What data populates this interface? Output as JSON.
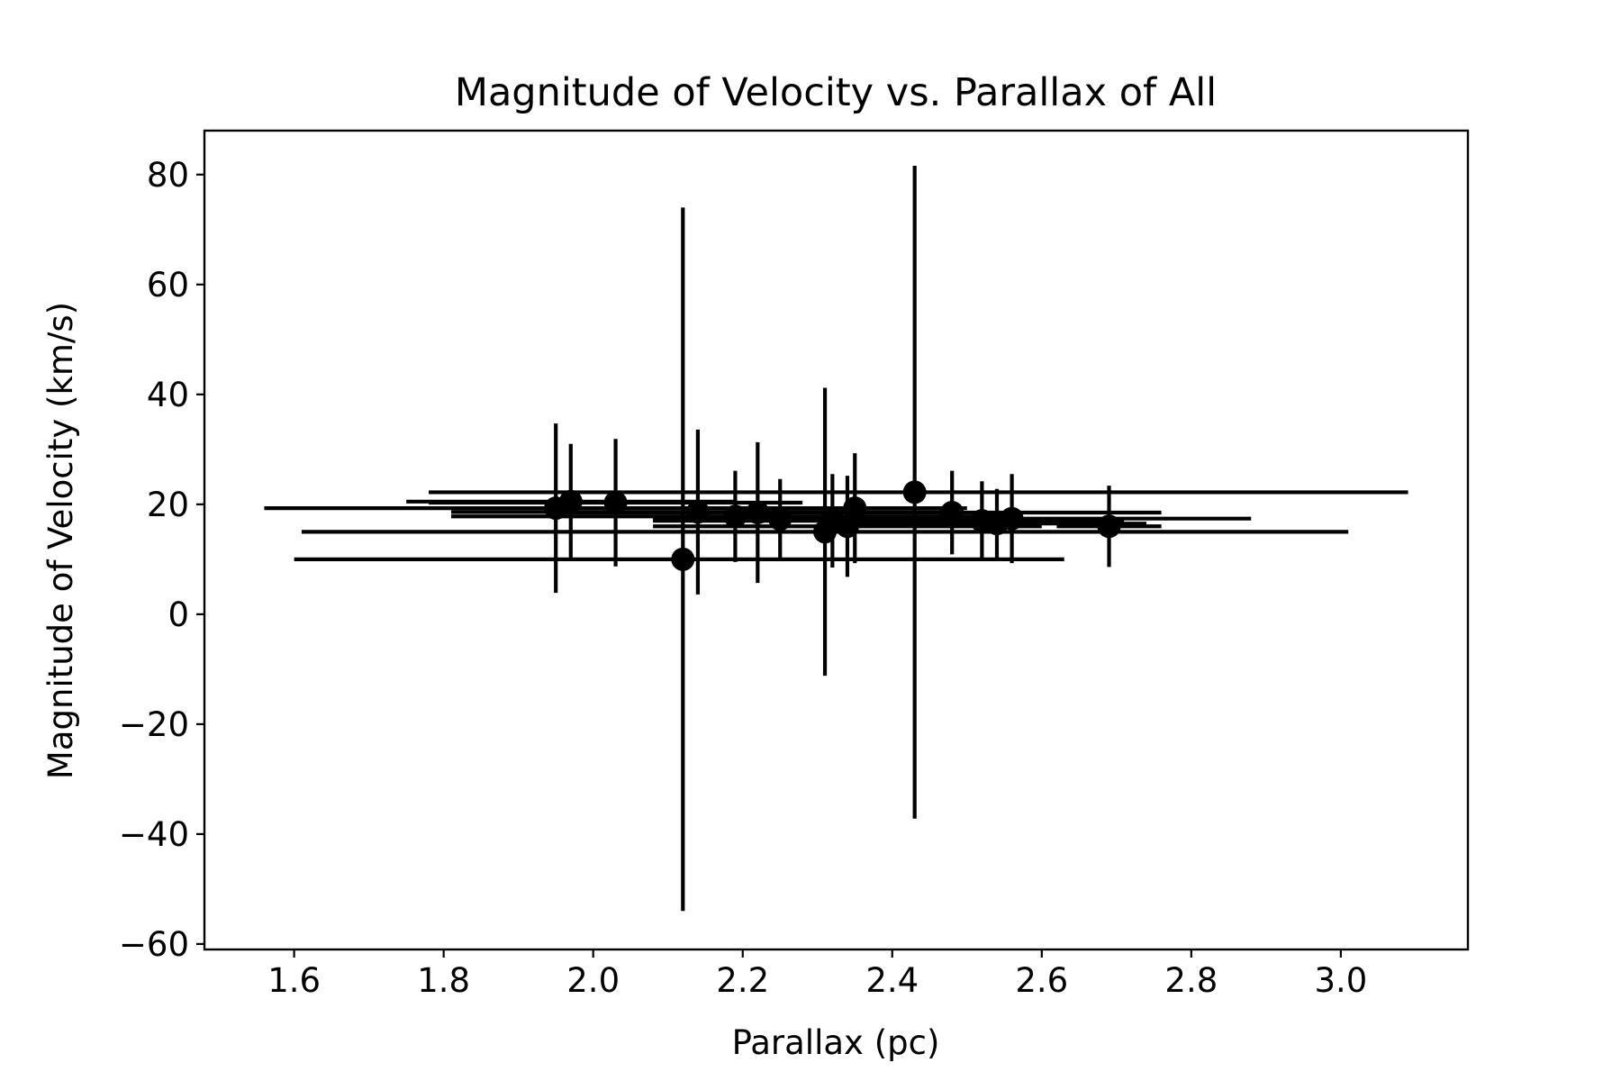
{
  "chart_data": {
    "type": "scatter",
    "title": "Magnitude of Velocity vs. Parallax of All",
    "xlabel": "Parallax (pc)",
    "ylabel": "Magnitude of Velocity (km/s)",
    "xlim": [
      1.48,
      3.17
    ],
    "ylim": [
      -61,
      88
    ],
    "xticks": [
      1.6,
      1.8,
      2.0,
      2.2,
      2.4,
      2.6,
      2.8,
      3.0
    ],
    "xtick_labels": [
      "1.6",
      "1.8",
      "2.0",
      "2.2",
      "2.4",
      "2.6",
      "2.8",
      "3.0"
    ],
    "yticks": [
      -60,
      -40,
      -20,
      0,
      20,
      40,
      60,
      80
    ],
    "ytick_labels": [
      "−60",
      "−40",
      "−20",
      "0",
      "20",
      "40",
      "60",
      "80"
    ],
    "grid": false,
    "marker_color": "#000000",
    "points": [
      {
        "x": 1.95,
        "y": 19.3,
        "xerr": [
          0.39,
          0.39
        ],
        "yerr": [
          15.4,
          15.4
        ]
      },
      {
        "x": 1.97,
        "y": 20.5,
        "xerr": [
          0.22,
          0.22
        ],
        "yerr": [
          10.5,
          10.5
        ]
      },
      {
        "x": 2.03,
        "y": 20.3,
        "xerr": [
          0.25,
          0.25
        ],
        "yerr": [
          11.6,
          11.6
        ]
      },
      {
        "x": 2.12,
        "y": 10.0,
        "xerr": [
          0.52,
          0.51
        ],
        "yerr": [
          64.0,
          64.0
        ]
      },
      {
        "x": 2.14,
        "y": 18.6,
        "xerr": [
          0.33,
          0.33
        ],
        "yerr": [
          15.0,
          15.0
        ]
      },
      {
        "x": 2.19,
        "y": 17.8,
        "xerr": [
          0.38,
          0.38
        ],
        "yerr": [
          8.3,
          8.3
        ]
      },
      {
        "x": 2.22,
        "y": 18.5,
        "xerr": [
          0.27,
          0.27
        ],
        "yerr": [
          12.8,
          12.8
        ]
      },
      {
        "x": 2.25,
        "y": 17.3,
        "xerr": [
          0.17,
          0.17
        ],
        "yerr": [
          7.3,
          7.3
        ]
      },
      {
        "x": 2.31,
        "y": 15.0,
        "xerr": [
          0.7,
          0.7
        ],
        "yerr": [
          26.2,
          26.2
        ]
      },
      {
        "x": 2.32,
        "y": 17.0,
        "xerr": [
          0.24,
          0.24
        ],
        "yerr": [
          8.5,
          8.5
        ]
      },
      {
        "x": 2.34,
        "y": 16.0,
        "xerr": [
          0.26,
          0.26
        ],
        "yerr": [
          9.2,
          9.2
        ]
      },
      {
        "x": 2.35,
        "y": 19.3,
        "xerr": [
          0.15,
          0.15
        ],
        "yerr": [
          10.0,
          10.0
        ]
      },
      {
        "x": 2.43,
        "y": 22.2,
        "xerr": [
          0.65,
          0.66
        ],
        "yerr": [
          59.4,
          59.4
        ]
      },
      {
        "x": 2.48,
        "y": 18.5,
        "xerr": [
          0.28,
          0.28
        ],
        "yerr": [
          7.6,
          7.6
        ]
      },
      {
        "x": 2.52,
        "y": 17.0,
        "xerr": [
          0.19,
          0.19
        ],
        "yerr": [
          7.2,
          7.2
        ]
      },
      {
        "x": 2.54,
        "y": 16.5,
        "xerr": [
          0.2,
          0.2
        ],
        "yerr": [
          6.3,
          6.3
        ]
      },
      {
        "x": 2.56,
        "y": 17.4,
        "xerr": [
          0.32,
          0.32
        ],
        "yerr": [
          8.1,
          8.1
        ]
      },
      {
        "x": 2.69,
        "y": 16.0,
        "xerr": [
          0.07,
          0.07
        ],
        "yerr": [
          7.4,
          7.4
        ]
      }
    ]
  }
}
